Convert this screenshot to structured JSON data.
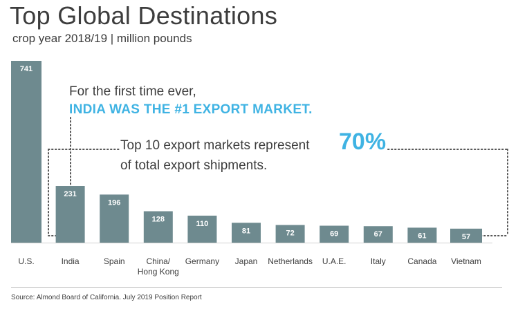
{
  "title": "Top Global Destinations",
  "subtitle": "crop year 2018/19 | million pounds",
  "annotation": {
    "line1": "For the first time ever,",
    "line2": "INDIA WAS THE #1 EXPORT MARKET.",
    "line3": "Top 10 export markets represent",
    "percent": "70%",
    "line4": "of total export shipments."
  },
  "source": "Source: Almond Board of California. July 2019 Position Report",
  "colors": {
    "bar": "#6e8a8f",
    "accent": "#3fb3e3",
    "text": "#3d3d3d",
    "dots": "#555555"
  },
  "chart_data": {
    "type": "bar",
    "categories": [
      "U.S.",
      "India",
      "Spain",
      "China/\nHong Kong",
      "Germany",
      "Japan",
      "Netherlands",
      "U.A.E.",
      "Italy",
      "Canada",
      "Vietnam"
    ],
    "values": [
      741,
      231,
      196,
      128,
      110,
      81,
      72,
      69,
      67,
      61,
      57
    ],
    "title": "Top Global Destinations",
    "subtitle": "crop year 2018/19 | million pounds",
    "xlabel": "",
    "ylabel": "",
    "grid": false,
    "data_labels": true
  }
}
